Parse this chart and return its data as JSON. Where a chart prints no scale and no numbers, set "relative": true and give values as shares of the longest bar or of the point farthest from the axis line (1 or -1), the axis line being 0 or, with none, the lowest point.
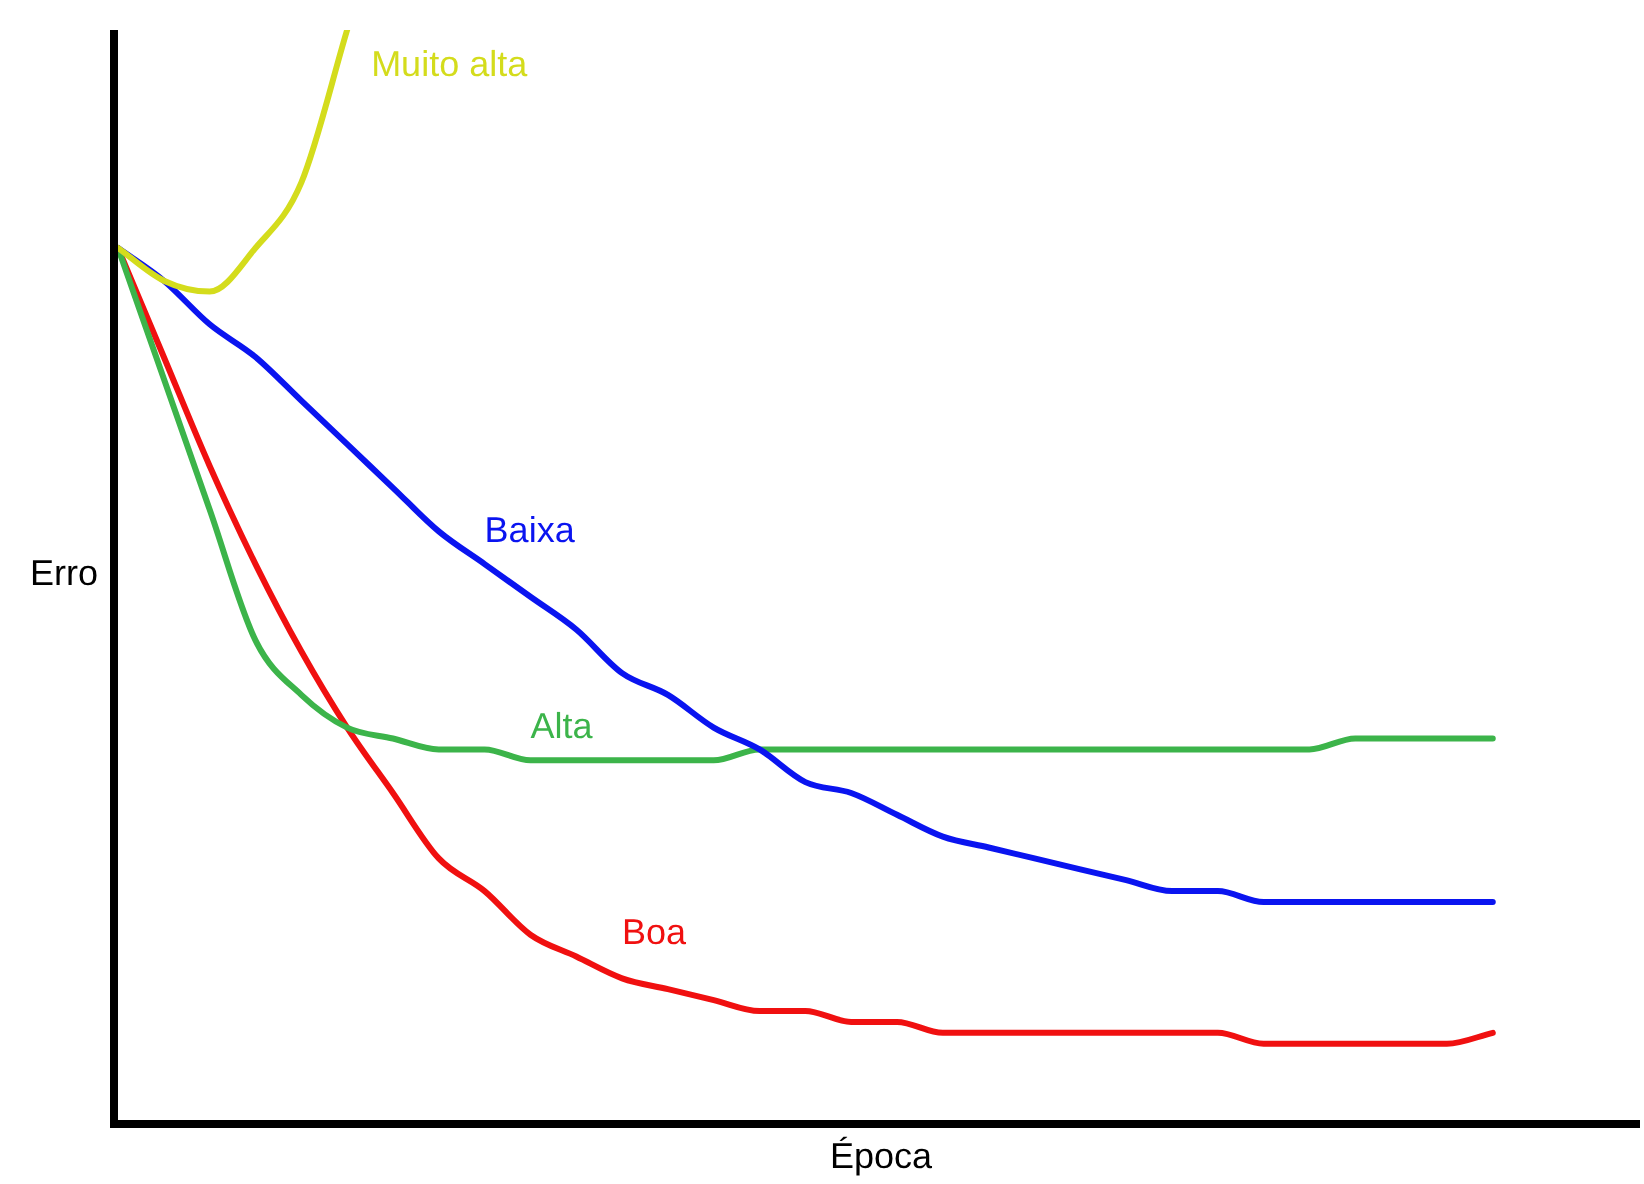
{
  "chart_data": {
    "type": "line",
    "relative": true,
    "xlabel": "Época",
    "ylabel": "Erro",
    "legend": false,
    "marker": "none",
    "line_style": "solid",
    "categories": [
      null,
      null,
      null,
      null,
      null,
      null,
      null,
      null,
      null,
      null,
      null,
      null,
      null,
      null,
      null,
      null,
      null,
      null,
      null,
      null,
      null,
      null,
      null,
      null,
      null,
      null,
      null,
      null,
      null,
      null,
      null
    ],
    "series": [
      {
        "name": "Muito alta",
        "color": "#d4dc1c",
        "values": [
          0.8,
          0.77,
          0.76,
          0.8,
          0.86,
          1.0,
          null,
          null,
          null,
          null,
          null,
          null,
          null,
          null,
          null,
          null,
          null,
          null,
          null,
          null,
          null,
          null,
          null,
          null,
          null,
          null,
          null,
          null,
          null,
          null,
          null
        ]
      },
      {
        "name": "Baixa",
        "color": "#0a14f0",
        "values": [
          0.8,
          0.77,
          0.73,
          0.7,
          0.66,
          0.62,
          0.58,
          0.54,
          0.51,
          0.48,
          0.45,
          0.41,
          0.39,
          0.36,
          0.34,
          0.31,
          0.3,
          0.28,
          0.26,
          0.25,
          0.24,
          0.23,
          0.22,
          0.21,
          0.21,
          0.2,
          0.2,
          0.2,
          0.2,
          0.2,
          0.2
        ]
      },
      {
        "name": "Alta",
        "color": "#3cb44a",
        "values": [
          0.8,
          0.68,
          0.56,
          0.44,
          0.39,
          0.36,
          0.35,
          0.34,
          0.34,
          0.33,
          0.33,
          0.33,
          0.33,
          0.33,
          0.34,
          0.34,
          0.34,
          0.34,
          0.34,
          0.34,
          0.34,
          0.34,
          0.34,
          0.34,
          0.34,
          0.34,
          0.34,
          0.35,
          0.35,
          0.35,
          0.35
        ]
      },
      {
        "name": "Boa",
        "color": "#f01010",
        "values": [
          0.8,
          0.7,
          0.6,
          0.51,
          0.43,
          0.36,
          0.3,
          0.24,
          0.21,
          0.17,
          0.15,
          0.13,
          0.12,
          0.11,
          0.1,
          0.1,
          0.09,
          0.09,
          0.08,
          0.08,
          0.08,
          0.08,
          0.08,
          0.08,
          0.08,
          0.07,
          0.07,
          0.07,
          0.07,
          0.07,
          0.08
        ]
      }
    ]
  }
}
